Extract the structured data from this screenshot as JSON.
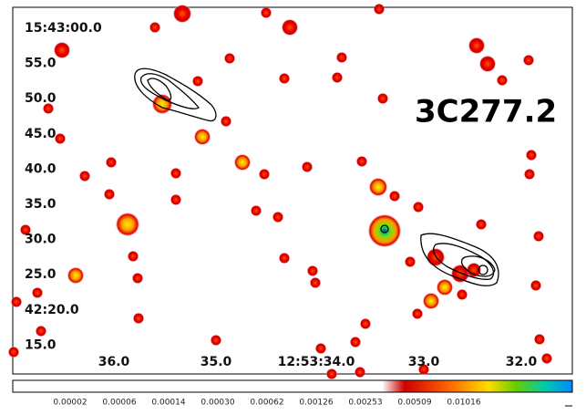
{
  "image": {
    "label": "3C277.2",
    "y_labels": [
      "15:43:00.0",
      "55.0",
      "50.0",
      "45.0",
      "40.0",
      "35.0",
      "30.0",
      "25.0",
      "42:20.0",
      "15.0"
    ],
    "x_labels": [
      "36.0",
      "35.0",
      "12:53:34.0",
      "33.0",
      "32.0"
    ]
  },
  "colorbar": {
    "ticks": [
      "0.00002",
      "0.00006",
      "0.00014",
      "0.00030",
      "0.00062",
      "0.00126",
      "0.00253",
      "0.00509",
      "0.01016"
    ]
  }
}
